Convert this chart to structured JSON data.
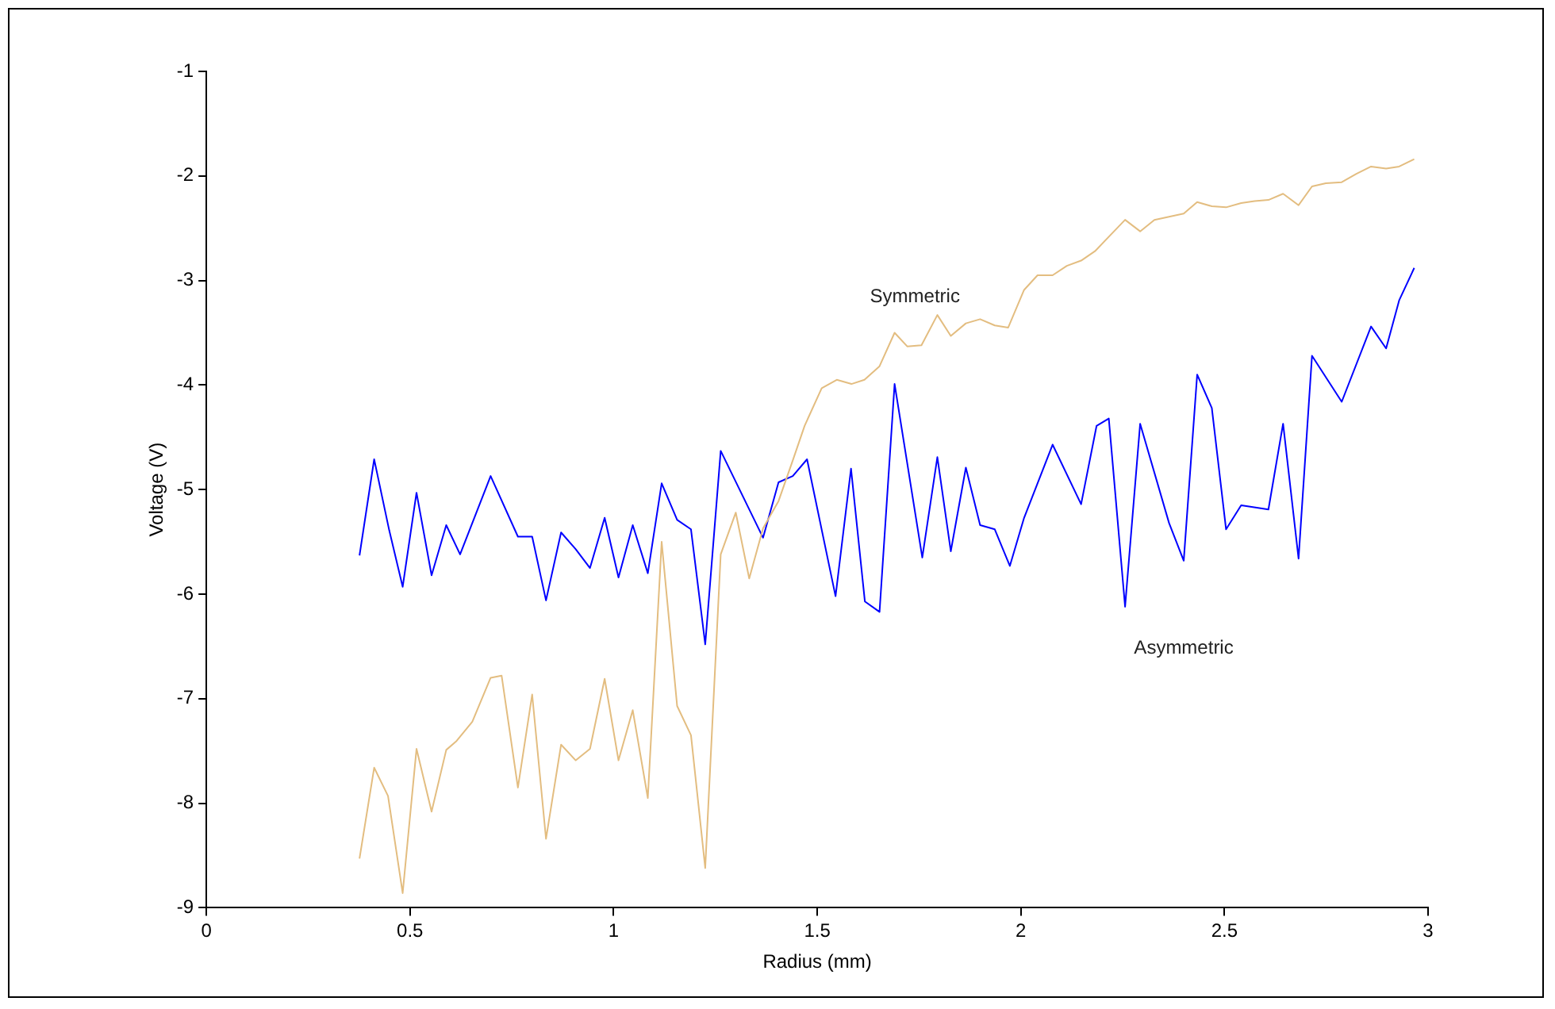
{
  "chart_data": {
    "type": "line",
    "xlabel": "Radius (mm)",
    "ylabel": "Voltage (V)",
    "xlim": [
      0,
      3
    ],
    "xticks": [
      0,
      0.5,
      1,
      1.5,
      2,
      2.5,
      3
    ],
    "ylim": [
      -9,
      -1
    ],
    "yticks": [
      -9,
      -8,
      -7,
      -6,
      -5,
      -4,
      -3,
      -2,
      -1
    ],
    "grid": false,
    "legend": false,
    "marker": "none",
    "line_style": "solid",
    "series": [
      {
        "name": "Symmetric",
        "color": "#e3bd80",
        "x": [
          0.376,
          0.412,
          0.446,
          0.482,
          0.516,
          0.553,
          0.589,
          0.613,
          0.653,
          0.698,
          0.725,
          0.765,
          0.8,
          0.834,
          0.871,
          0.907,
          0.942,
          0.978,
          1.012,
          1.047,
          1.084,
          1.118,
          1.156,
          1.19,
          1.225,
          1.263,
          1.3,
          1.333,
          1.367,
          1.405,
          1.44,
          1.469,
          1.511,
          1.548,
          1.584,
          1.616,
          1.653,
          1.69,
          1.721,
          1.756,
          1.795,
          1.828,
          1.865,
          1.9,
          1.936,
          1.969,
          2.008,
          2.041,
          2.078,
          2.113,
          2.148,
          2.182,
          2.219,
          2.256,
          2.293,
          2.328,
          2.364,
          2.4,
          2.433,
          2.469,
          2.504,
          2.541,
          2.574,
          2.608,
          2.644,
          2.682,
          2.715,
          2.749,
          2.788,
          2.824,
          2.86,
          2.897,
          2.929,
          2.966
        ],
        "values": [
          -8.53,
          -7.66,
          -7.93,
          -8.86,
          -7.48,
          -8.08,
          -7.49,
          -7.41,
          -7.22,
          -6.8,
          -6.78,
          -7.85,
          -6.96,
          -8.34,
          -7.44,
          -7.59,
          -7.48,
          -6.81,
          -7.59,
          -7.11,
          -7.95,
          -5.5,
          -7.07,
          -7.35,
          -8.62,
          -5.62,
          -5.22,
          -5.85,
          -5.37,
          -5.11,
          -4.72,
          -4.39,
          -4.03,
          -3.95,
          -3.99,
          -3.95,
          -3.82,
          -3.5,
          -3.63,
          -3.62,
          -3.33,
          -3.53,
          -3.41,
          -3.37,
          -3.43,
          -3.45,
          -3.09,
          -2.95,
          -2.95,
          -2.86,
          -2.81,
          -2.72,
          -2.57,
          -2.42,
          -2.53,
          -2.42,
          -2.39,
          -2.36,
          -2.25,
          -2.29,
          -2.3,
          -2.26,
          -2.24,
          -2.23,
          -2.17,
          -2.28,
          -2.1,
          -2.07,
          -2.06,
          -1.98,
          -1.91,
          -1.93,
          -1.91,
          -1.84
        ]
      },
      {
        "name": "Asymmetric",
        "color": "#0000ff",
        "x": [
          0.376,
          0.412,
          0.449,
          0.482,
          0.516,
          0.553,
          0.589,
          0.623,
          0.698,
          0.765,
          0.8,
          0.834,
          0.871,
          0.907,
          0.942,
          0.978,
          1.012,
          1.047,
          1.084,
          1.118,
          1.156,
          1.19,
          1.225,
          1.263,
          1.367,
          1.405,
          1.44,
          1.475,
          1.545,
          1.583,
          1.617,
          1.653,
          1.69,
          1.758,
          1.795,
          1.828,
          1.865,
          1.9,
          1.936,
          1.973,
          2.008,
          2.078,
          2.148,
          2.186,
          2.216,
          2.256,
          2.293,
          2.364,
          2.4,
          2.433,
          2.469,
          2.504,
          2.541,
          2.608,
          2.644,
          2.682,
          2.715,
          2.788,
          2.86,
          2.897,
          2.929,
          2.966
        ],
        "values": [
          -5.63,
          -4.71,
          -5.39,
          -5.93,
          -5.03,
          -5.82,
          -5.34,
          -5.62,
          -4.87,
          -5.45,
          -5.45,
          -6.06,
          -5.41,
          -5.57,
          -5.75,
          -5.27,
          -5.84,
          -5.34,
          -5.8,
          -4.94,
          -5.29,
          -5.38,
          -6.48,
          -4.63,
          -5.46,
          -4.93,
          -4.87,
          -4.71,
          -6.02,
          -4.8,
          -6.07,
          -6.17,
          -3.99,
          -5.65,
          -4.69,
          -5.59,
          -4.79,
          -5.34,
          -5.38,
          -5.73,
          -5.27,
          -4.57,
          -5.14,
          -4.39,
          -4.32,
          -6.12,
          -4.37,
          -5.32,
          -5.68,
          -3.9,
          -4.22,
          -5.38,
          -5.15,
          -5.19,
          -4.37,
          -5.66,
          -3.72,
          -4.16,
          -3.44,
          -3.65,
          -3.19,
          -2.88
        ]
      }
    ]
  }
}
